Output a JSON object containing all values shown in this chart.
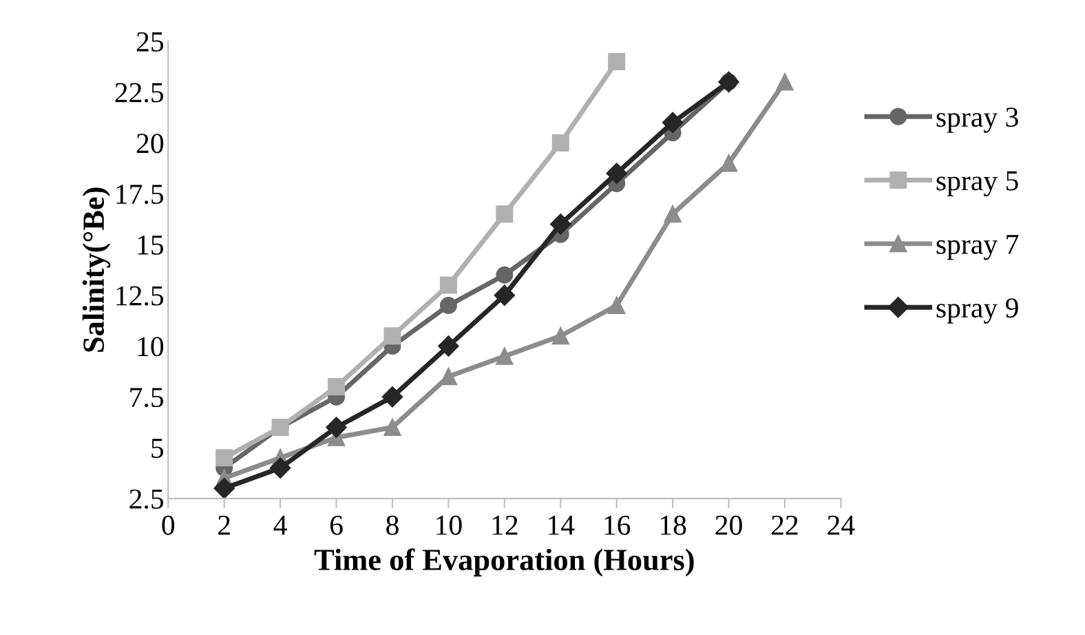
{
  "chart_data": {
    "type": "line",
    "xlabel": "Time of Evaporation (Hours)",
    "ylabel": "Salinity(°Be)",
    "xlim": [
      0,
      24
    ],
    "xticks": [
      0,
      2,
      4,
      6,
      8,
      10,
      12,
      14,
      16,
      18,
      20,
      22,
      24
    ],
    "ylim": [
      2.5,
      25
    ],
    "yticks": [
      2.5,
      5,
      7.5,
      10,
      12.5,
      15,
      17.5,
      20,
      22.5,
      25
    ],
    "grid": false,
    "legend": "right",
    "line_style": "solid",
    "series": [
      {
        "name": "spray 3",
        "color": "#666666",
        "marker": "circle",
        "x": [
          2,
          4,
          6,
          8,
          10,
          12,
          14,
          16,
          18,
          20
        ],
        "values": [
          4,
          6,
          7.5,
          10,
          12,
          13.5,
          15.5,
          18,
          20.5,
          23
        ]
      },
      {
        "name": "spray 5",
        "color": "#b0b0b0",
        "marker": "square",
        "x": [
          2,
          4,
          6,
          8,
          10,
          12,
          14,
          16
        ],
        "values": [
          4.5,
          6,
          8,
          10.5,
          13,
          16.5,
          20,
          24
        ]
      },
      {
        "name": "spray 7",
        "color": "#8c8c8c",
        "marker": "triangle",
        "x": [
          2,
          4,
          6,
          8,
          10,
          12,
          14,
          16,
          18,
          20,
          22
        ],
        "values": [
          3.5,
          4.5,
          5.5,
          6,
          8.5,
          9.5,
          10.5,
          12,
          16.5,
          19,
          23
        ]
      },
      {
        "name": "spray 9",
        "color": "#262626",
        "marker": "diamond",
        "x": [
          2,
          4,
          6,
          8,
          10,
          12,
          14,
          16,
          18,
          20
        ],
        "values": [
          3,
          4,
          6,
          7.5,
          10,
          12.5,
          16,
          18.5,
          21,
          23
        ]
      }
    ]
  }
}
